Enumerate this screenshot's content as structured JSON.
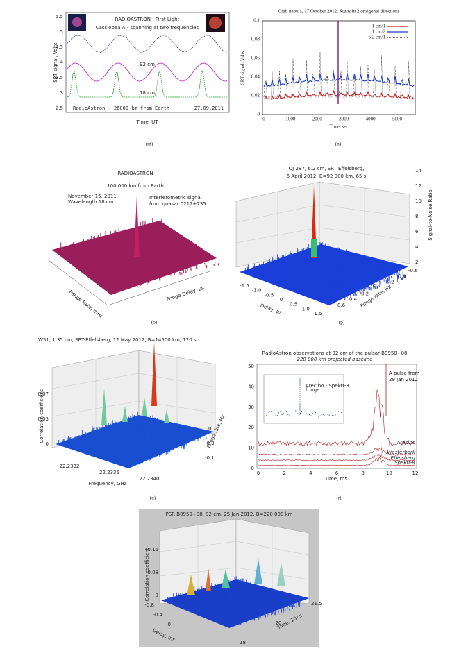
{
  "panels": [
    {
      "caption": "(m)",
      "title": "RADIOASTRON - First Light",
      "subtitle": "Cassiopea A - scanning at two frequencies",
      "y_label": "SRT signal, Volts",
      "x_label": "Time, UT",
      "y_ticks": [
        "5.5",
        "5",
        "4.5",
        "4",
        "3.5",
        "3",
        "2.5"
      ],
      "labels": [
        "92 cm",
        "18 cm"
      ],
      "footer": [
        "RadioAstron - 26000 km from Earth",
        "27.09.2011"
      ]
    },
    {
      "caption": "(n)",
      "title": "Crab nebula, 17 October 2012. Scans in 2 ortogonal directions",
      "legend": [
        "1 cm/1",
        "1 cm/2",
        "6.2 cm/1"
      ],
      "y_label": "SRT signal, Volts",
      "x_label": "Time, sec",
      "y_ticks": [
        "0",
        "0.02",
        "0.04",
        "0.06",
        "0.08",
        "0.1"
      ],
      "x_ticks": [
        "0",
        "1000",
        "2000",
        "3000",
        "4000",
        "5000"
      ]
    },
    {
      "caption": "(o)",
      "title": "RADIOASTRON",
      "subtitle": "100 000 km from Earth",
      "notes": [
        "November 15, 2011",
        "Wavelength 18 cm"
      ],
      "annotation": [
        "Interferometric signal",
        "from quasar 0212+735"
      ],
      "x_label": "Fringe Delay, µs",
      "y_label": "Fringe Rate, mHz"
    },
    {
      "caption": "(p)",
      "title": [
        "OJ 287, 6.2 cm, SRT Effelsberg,",
        "6 April 2012, B=92 000 km, 65 s"
      ],
      "z_label": "Signal-to-Noise Ratio",
      "z_ticks": [
        "2",
        "4",
        "6",
        "8",
        "10",
        "12",
        "14"
      ],
      "x_label": "Delay, µs",
      "x_ticks": [
        "-1.5",
        "-1.0",
        "-0.5",
        "0",
        "0.5",
        "1.0",
        "1.5"
      ],
      "y_label": "Fringe rate, Hz",
      "y_ticks": [
        "-0.6",
        "-0.4",
        "-0.2",
        "0",
        "0.2",
        "0.4",
        "0.6"
      ]
    },
    {
      "caption": "(q)",
      "title": "W51, 1.35 cm, SRT-Effelsberg, 12 May 2012, B=14500 km, 120 s",
      "z_label": "Correlation coefficient",
      "z_ticks": [
        "0",
        "0.03",
        "0.07"
      ],
      "x_label": "Frequency, GHz",
      "x_ticks": [
        "22.2332",
        "22.2335",
        "22.2340"
      ],
      "y_label": "Fringe rate, Hz",
      "y_ticks": [
        "-0.1",
        "0.3",
        "0.7"
      ]
    },
    {
      "caption": "(r)",
      "title": "RadioAstron observations at 92 cm of the pulsar B0950+08",
      "subtitle": "220 000 km projected baseline",
      "annotation": [
        "A pulse from",
        "29 Jan 2012"
      ],
      "inset_label": [
        "Arecibo - Spektr-R",
        "fringe"
      ],
      "traces": [
        "Arecibo",
        "Westerbork",
        "Effelsberg",
        "Spektr-R"
      ],
      "x_label": "Time, ms",
      "y_ticks": [
        "0",
        "10",
        "20",
        "30",
        "40",
        "50"
      ],
      "x_ticks": [
        "0",
        "2",
        "4",
        "6",
        "8",
        "10",
        "12"
      ]
    },
    {
      "title": "PSR  B0950+08, 92 cm. 25 Jan 2012, B=220 000 km",
      "z_label": "Correlation coefficient",
      "z_ticks": [
        "0",
        "0.08",
        "0.16"
      ],
      "x_label": "Delay, ms",
      "x_ticks": [
        "-0.8",
        "-0.4",
        "0"
      ],
      "y_label": "Time, 10³ s",
      "y_ticks": [
        "18",
        "20",
        "21.5"
      ]
    }
  ]
}
